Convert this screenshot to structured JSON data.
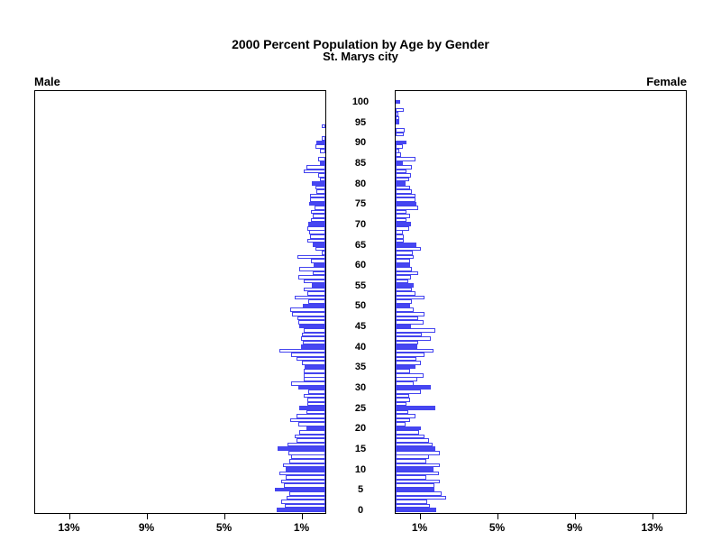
{
  "title": {
    "line1": "2000 Percent Population by Age by Gender",
    "line2": "St. Marys city"
  },
  "panels": {
    "male_label": "Male",
    "female_label": "Female"
  },
  "axis": {
    "male_tick_labels": [
      "13%",
      "9%",
      "5%",
      "1%"
    ],
    "male_tick_values": [
      13,
      9,
      5,
      1
    ],
    "female_tick_labels": [
      "1%",
      "5%",
      "9%",
      "13%"
    ],
    "female_tick_values": [
      1,
      5,
      9,
      13
    ],
    "age_min": 0,
    "age_max": 100,
    "age_label_interval": 5,
    "age_labels": [
      "0",
      "5",
      "10",
      "15",
      "20",
      "25",
      "30",
      "35",
      "40",
      "45",
      "50",
      "55",
      "60",
      "65",
      "70",
      "75",
      "80",
      "85",
      "90",
      "95",
      "100"
    ]
  },
  "colors": {
    "bar_outline": "#4343ef",
    "bar_solid_fill": "#4646f2",
    "bar_hollow_fill": "#ffffff",
    "axis_color": "#000000"
  },
  "legend_note": "bars at ages divisible by 5 are solid filled, other single-year ages are hollow outlined",
  "chart_data": {
    "type": "bar",
    "subtype": "population-pyramid",
    "title": "2000 Percent Population by Age by Gender",
    "subtitle": "St. Marys city",
    "xlabel_left": "Male",
    "xlabel_right": "Female",
    "x_unit": "percent of population",
    "xlim_each_side": [
      0,
      15
    ],
    "ages": "single years 0 through 100, age increases bottom to top",
    "series": [
      {
        "name": "Male",
        "values": [
          2.5,
          2.1,
          2.3,
          2.0,
          1.85,
          2.6,
          2.15,
          2.3,
          2.05,
          2.35,
          2.05,
          2.2,
          1.85,
          1.75,
          1.9,
          2.45,
          1.95,
          1.5,
          1.6,
          1.35,
          1.0,
          1.4,
          1.8,
          1.5,
          1.0,
          1.35,
          0.95,
          0.95,
          1.1,
          0.9,
          1.4,
          1.75,
          1.1,
          1.1,
          1.1,
          1.05,
          1.2,
          1.5,
          1.75,
          2.35,
          1.25,
          1.15,
          1.25,
          1.2,
          1.1,
          1.35,
          1.4,
          1.45,
          1.7,
          1.8,
          1.15,
          0.9,
          1.6,
          0.95,
          1.1,
          0.7,
          1.1,
          1.4,
          0.65,
          1.35,
          0.6,
          0.75,
          1.45,
          0.2,
          0.5,
          0.65,
          0.95,
          0.8,
          0.85,
          0.95,
          0.9,
          0.75,
          0.65,
          0.75,
          0.55,
          0.85,
          0.8,
          0.8,
          0.45,
          0.5,
          0.7,
          0.3,
          0.35,
          1.1,
          1.0,
          0.3,
          0.35,
          0.0,
          0.3,
          0.5,
          0.45,
          0.2,
          0.0,
          0.0,
          0.2,
          0.0,
          0.0,
          0.0,
          0.0,
          0.0,
          0.0
        ]
      },
      {
        "name": "Female",
        "values": [
          2.1,
          1.75,
          1.65,
          2.6,
          2.35,
          2.0,
          2.0,
          2.3,
          1.6,
          2.25,
          1.95,
          2.3,
          1.6,
          1.7,
          2.3,
          2.05,
          1.9,
          1.7,
          1.5,
          1.2,
          1.3,
          0.5,
          0.75,
          1.0,
          0.65,
          2.05,
          0.55,
          0.75,
          0.7,
          1.3,
          1.8,
          0.95,
          1.1,
          1.45,
          0.75,
          1.0,
          1.3,
          1.05,
          1.5,
          1.95,
          1.1,
          1.15,
          1.8,
          1.35,
          2.05,
          0.8,
          1.45,
          1.15,
          1.5,
          0.95,
          0.75,
          0.85,
          1.5,
          1.0,
          0.85,
          0.95,
          0.65,
          0.8,
          1.15,
          0.85,
          0.75,
          0.75,
          0.95,
          0.9,
          1.3,
          1.05,
          0.4,
          0.4,
          0.35,
          0.7,
          0.8,
          0.55,
          0.75,
          0.55,
          1.15,
          1.05,
          1.0,
          1.0,
          0.85,
          0.75,
          0.5,
          0.7,
          0.8,
          0.55,
          0.85,
          0.35,
          1.0,
          0.3,
          0.2,
          0.35,
          0.55,
          0.0,
          0.4,
          0.45,
          0.0,
          0.2,
          0.2,
          0.15,
          0.4,
          0.0,
          0.25
        ]
      }
    ],
    "x_ticks_percent": [
      1,
      5,
      9,
      13
    ],
    "grid": false,
    "legend_position": "none"
  }
}
